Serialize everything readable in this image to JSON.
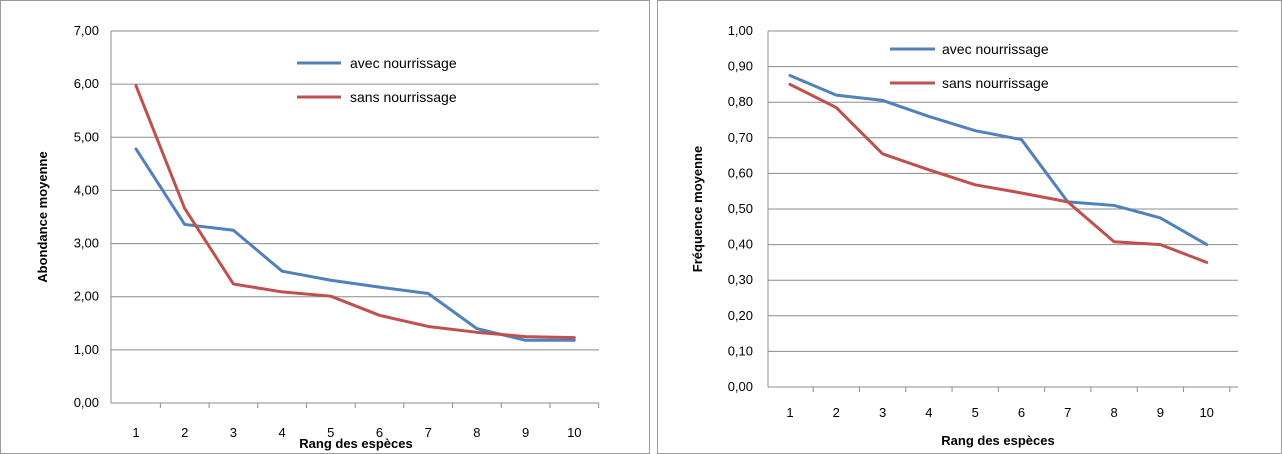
{
  "chart_data": [
    {
      "type": "line",
      "categories": [
        "1",
        "2",
        "3",
        "4",
        "5",
        "6",
        "7",
        "8",
        "9",
        "10"
      ],
      "series": [
        {
          "name": "avec nourrissage",
          "values": [
            4.78,
            3.36,
            3.25,
            2.48,
            2.31,
            2.18,
            2.06,
            1.4,
            1.18,
            1.18
          ],
          "color": "#4f81bd"
        },
        {
          "name": "sans nourrissage",
          "values": [
            5.97,
            3.66,
            2.24,
            2.09,
            2.01,
            1.65,
            1.44,
            1.33,
            1.25,
            1.23
          ],
          "color": "#c0504d"
        }
      ],
      "ylim": [
        0,
        7
      ],
      "yticks": [
        "0,00",
        "1,00",
        "2,00",
        "3,00",
        "4,00",
        "5,00",
        "6,00",
        "7,00"
      ],
      "xlabel": "Rang des espèces",
      "ylabel": "Abondance moyenne",
      "grid": true,
      "legend": "top-right"
    },
    {
      "type": "line",
      "categories": [
        "1",
        "2",
        "3",
        "4",
        "5",
        "6",
        "7",
        "8",
        "9",
        "10"
      ],
      "series": [
        {
          "name": "avec nourrissage",
          "values": [
            0.875,
            0.82,
            0.805,
            0.76,
            0.72,
            0.695,
            0.52,
            0.51,
            0.475,
            0.4
          ],
          "color": "#4f81bd"
        },
        {
          "name": "sans nourrissage",
          "values": [
            0.85,
            0.785,
            0.655,
            0.61,
            0.568,
            0.545,
            0.52,
            0.408,
            0.4,
            0.35
          ],
          "color": "#c0504d"
        }
      ],
      "ylim": [
        0,
        1
      ],
      "yticks": [
        "0,00",
        "0,10",
        "0,20",
        "0,30",
        "0,40",
        "0,50",
        "0,60",
        "0,70",
        "0,80",
        "0,90",
        "1,00"
      ],
      "xlabel": "Rang des espèces",
      "ylabel": "Fréquence moyenne",
      "grid": true,
      "legend": "top-right"
    }
  ]
}
